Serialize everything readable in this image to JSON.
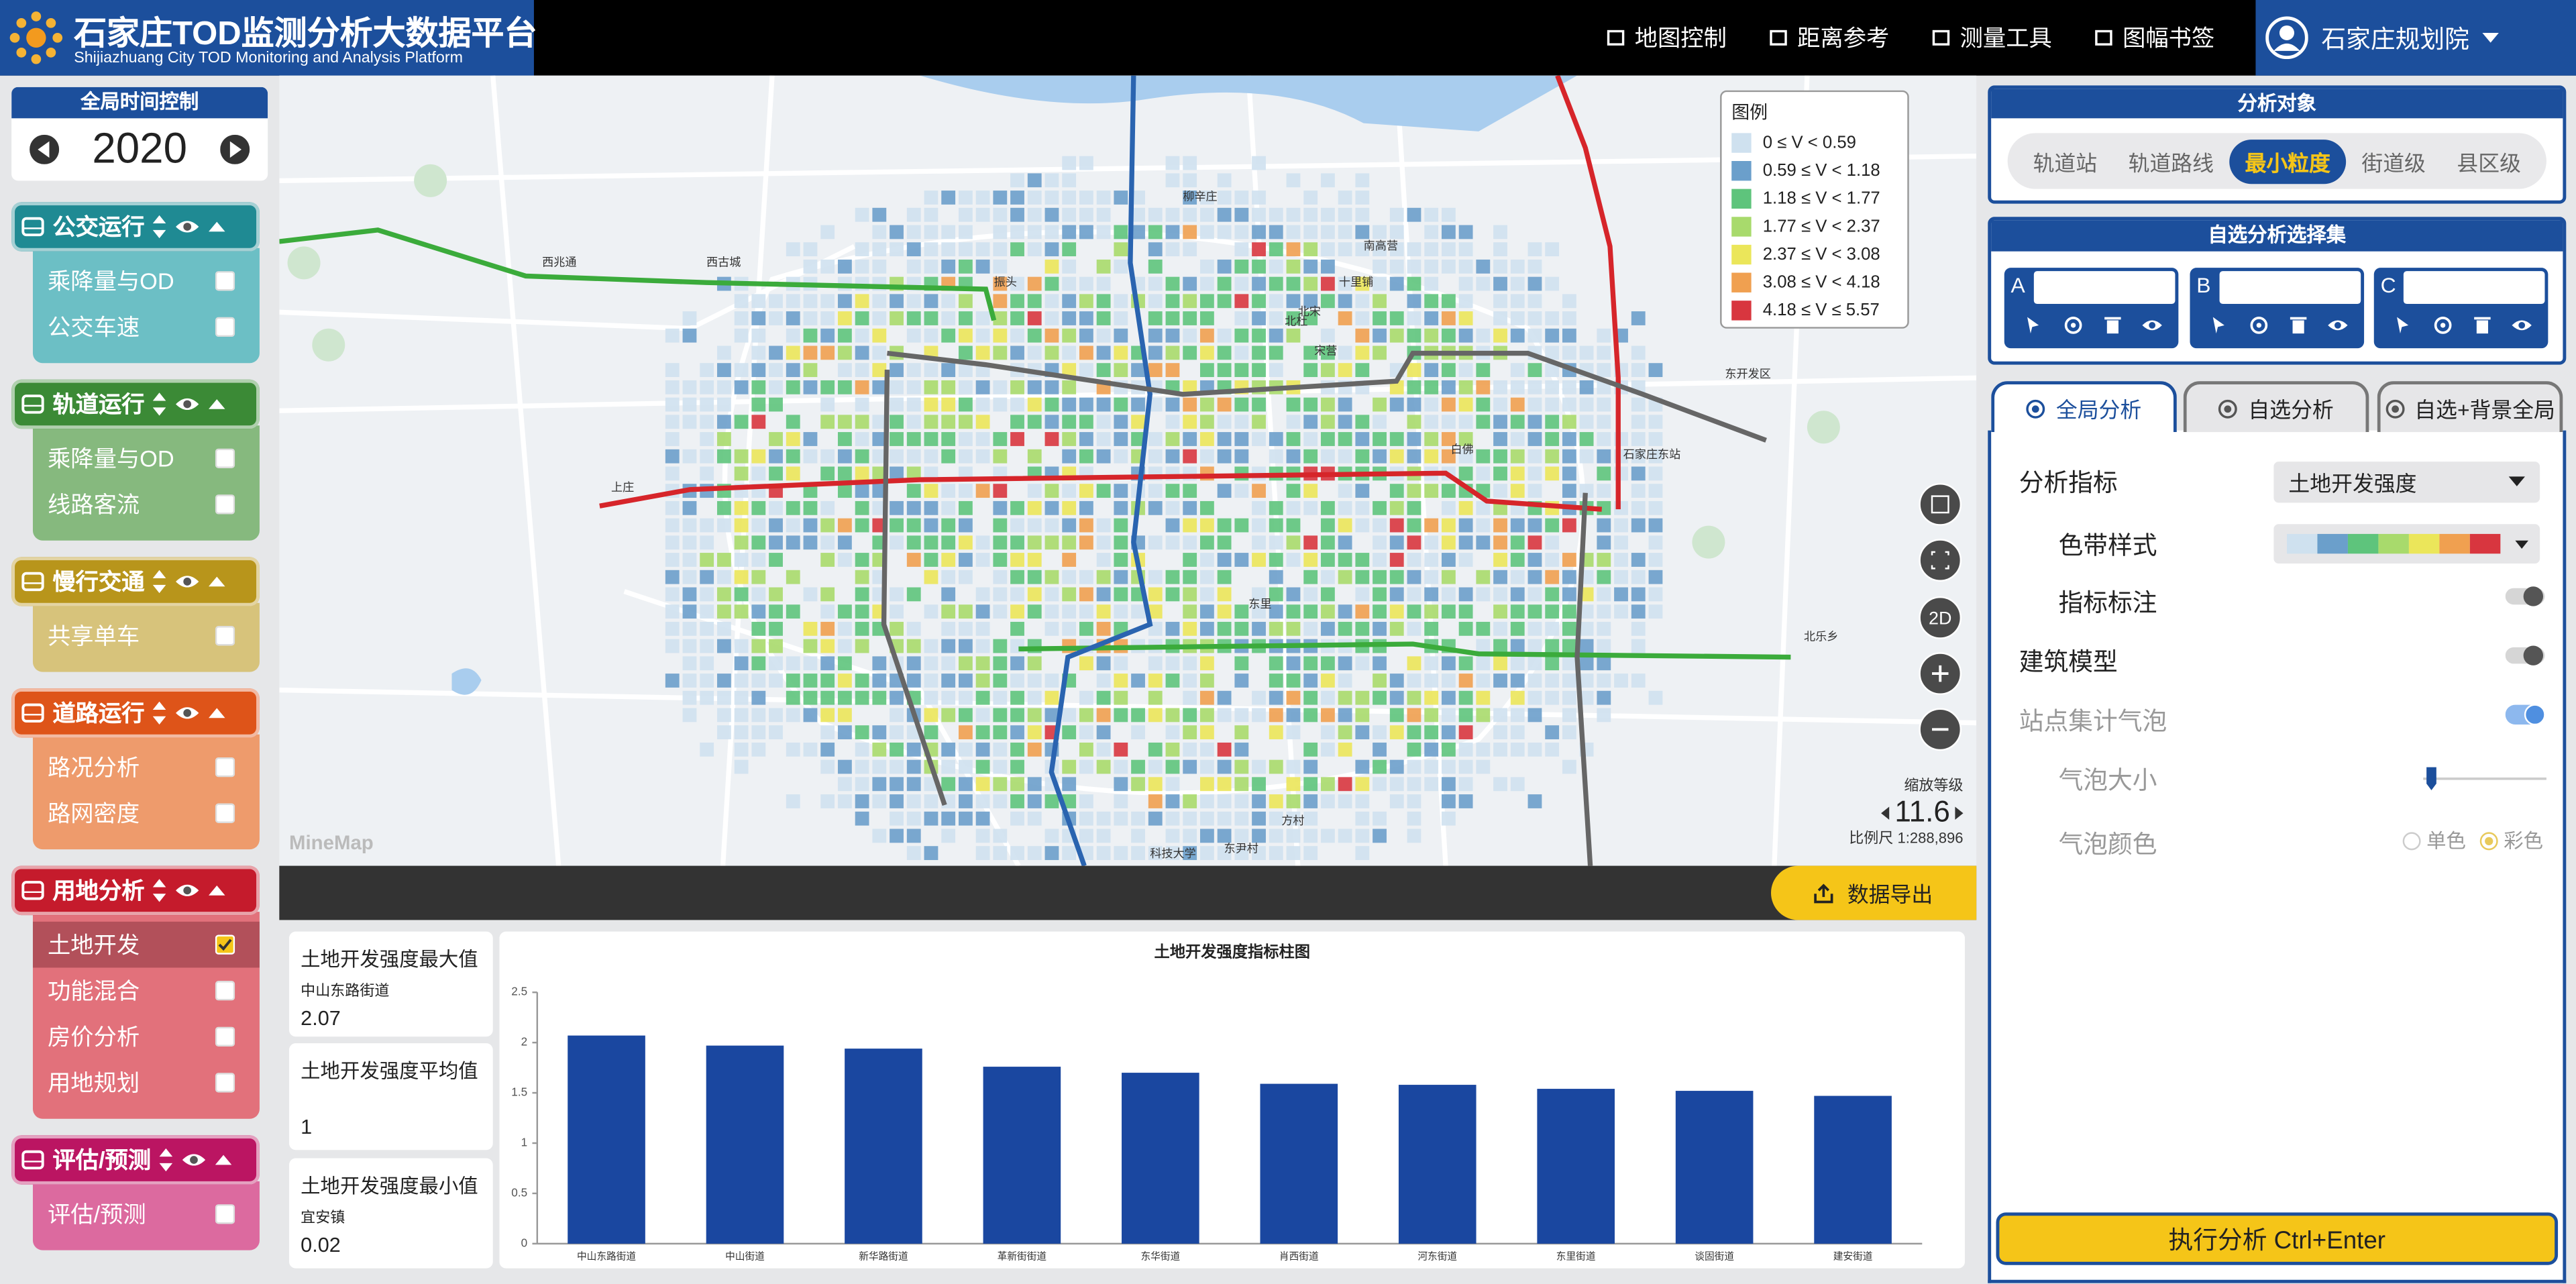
{
  "header": {
    "title": "石家庄TOD监测分析大数据平台",
    "subtitle": "Shijiazhuang City TOD Monitoring and Analysis Platform",
    "menu": [
      "地图控制",
      "距离参考",
      "测量工具",
      "图幅书签"
    ],
    "user": "石家庄规划院"
  },
  "time_control": {
    "title": "全局时间控制",
    "year": 2020
  },
  "layer_groups": [
    {
      "title": "公交运行",
      "color": "#1f8a93",
      "item_color": "#6cbfc5",
      "items": [
        {
          "label": "乘降量与OD",
          "checked": false
        },
        {
          "label": "公交车速",
          "checked": false
        }
      ]
    },
    {
      "title": "轨道运行",
      "color": "#3b8a36",
      "item_color": "#86b97e",
      "items": [
        {
          "label": "乘降量与OD",
          "checked": false
        },
        {
          "label": "线路客流",
          "checked": false
        }
      ]
    },
    {
      "title": "慢行交通",
      "color": "#b8951b",
      "item_color": "#d7c37b",
      "items": [
        {
          "label": "共享单车",
          "checked": false
        }
      ]
    },
    {
      "title": "道路运行",
      "color": "#de5419",
      "item_color": "#ee9b6c",
      "items": [
        {
          "label": "路况分析",
          "checked": false
        },
        {
          "label": "路网密度",
          "checked": false
        }
      ]
    },
    {
      "title": "用地分析",
      "color": "#c51b2c",
      "item_color": "#e2717b",
      "items": [
        {
          "label": "土地开发",
          "checked": true
        },
        {
          "label": "功能混合",
          "checked": false
        },
        {
          "label": "房价分析",
          "checked": false
        },
        {
          "label": "用地规划",
          "checked": false
        }
      ]
    },
    {
      "title": "评估/预测",
      "color": "#bb1562",
      "item_color": "#dc6a9f",
      "items": [
        {
          "label": "评估/预测",
          "checked": false
        }
      ]
    }
  ],
  "map": {
    "legend_title": "图例",
    "legend": [
      {
        "label": "0 ≤ V < 0.59",
        "color": "#cfe1ef"
      },
      {
        "label": "0.59 ≤ V < 1.18",
        "color": "#6b9fcb"
      },
      {
        "label": "1.18 ≤ V < 1.77",
        "color": "#5ec47c"
      },
      {
        "label": "1.77 ≤ V < 2.37",
        "color": "#a8da6c"
      },
      {
        "label": "2.37 ≤ V < 3.08",
        "color": "#ebe65a"
      },
      {
        "label": "3.08 ≤ V < 4.18",
        "color": "#f0a050"
      },
      {
        "label": "4.18 ≤ V ≤ 5.57",
        "color": "#d8363f"
      }
    ],
    "place_labels": [
      "上庄",
      "西兆通",
      "南高营",
      "十里铺",
      "白佛",
      "北宋",
      "柳辛庄",
      "东开发区",
      "宋营",
      "东里",
      "方村",
      "东尹村",
      "科技大学",
      "石家庄东站",
      "北杜",
      "振头",
      "西古城",
      "北乐乡"
    ],
    "view_mode": "2D",
    "zoom_label": "缩放等级",
    "zoom": 11.6,
    "scale": "比例尺 1:288,896",
    "watermark": "MineMap"
  },
  "export_button": "数据导出",
  "stats": [
    {
      "title": "土地开发强度最大值",
      "sub": "中山东路街道",
      "value": 2.07
    },
    {
      "title": "土地开发强度平均值",
      "value": 1
    },
    {
      "title": "土地开发强度最小值",
      "sub": "宜安镇",
      "value": 0.02
    }
  ],
  "chart_data": {
    "type": "bar",
    "title": "土地开发强度指标柱图",
    "categories": [
      "中山东路街道",
      "中山街道",
      "新华路街道",
      "革新街街道",
      "东华街道",
      "肖西街道",
      "河东街道",
      "东里街道",
      "谈固街道",
      "建安街道"
    ],
    "values": [
      2.07,
      1.97,
      1.94,
      1.76,
      1.7,
      1.59,
      1.58,
      1.54,
      1.52,
      1.47
    ],
    "color": "#1a47a0",
    "ylim": [
      0,
      2.5
    ],
    "yticks": [
      0,
      0.5,
      1,
      1.5,
      2,
      2.5
    ]
  },
  "analysis_object": {
    "title": "分析对象",
    "options": [
      "轨道站",
      "轨道路线",
      "最小粒度",
      "街道级",
      "县区级"
    ],
    "selected": 2
  },
  "selection_set": {
    "title": "自选分析选择集",
    "slots": [
      "A",
      "B",
      "C"
    ]
  },
  "analysis_tabs": {
    "options": [
      "全局分析",
      "自选分析",
      "自选+背景全局"
    ],
    "selected": 0
  },
  "settings": {
    "indicator_label": "分析指标",
    "indicator": "土地开发强度",
    "color_ramp_label": "色带样式",
    "label_toggle": {
      "label": "指标标注",
      "on": false
    },
    "building_toggle": {
      "label": "建筑模型",
      "on": false
    },
    "bubble_toggle": {
      "label": "站点集计气泡",
      "on": true
    },
    "bubble_size_label": "气泡大小",
    "bubble_color_label": "气泡颜色",
    "bubble_color_options": [
      "单色",
      "彩色"
    ],
    "bubble_color_selected": 1
  },
  "run_button": "执行分析 Ctrl+Enter"
}
